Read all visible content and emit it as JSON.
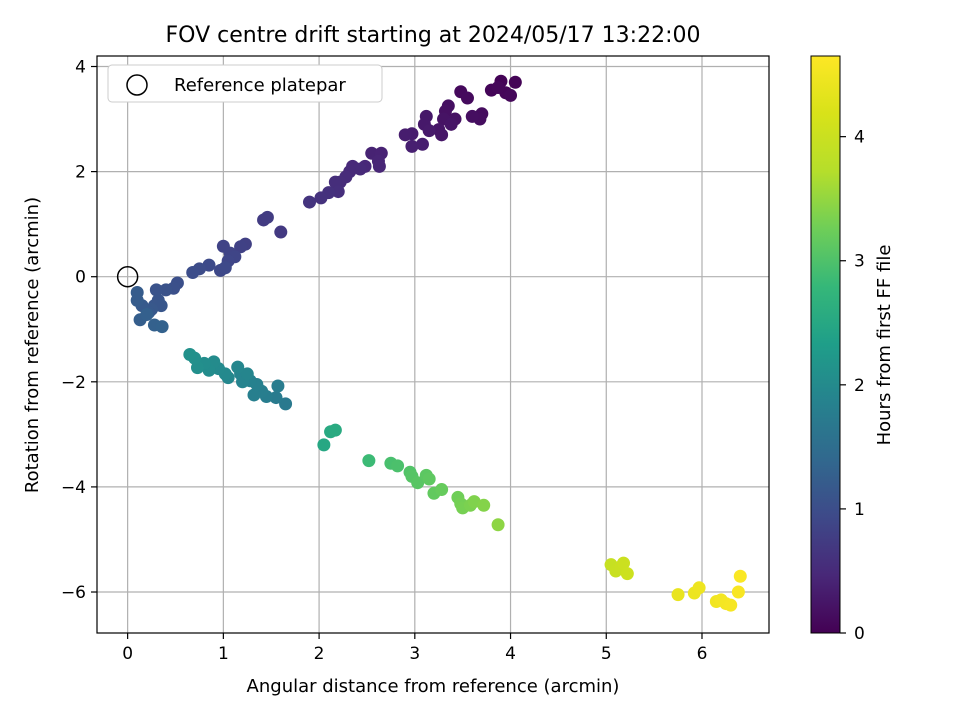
{
  "chart_data": {
    "type": "scatter",
    "title": "FOV centre drift starting at 2024/05/17 13:22:00",
    "xlabel": "Angular distance from reference (arcmin)",
    "ylabel": "Rotation from reference (arcmin)",
    "xlim": [
      -0.32,
      6.7
    ],
    "ylim": [
      -6.78,
      4.2
    ],
    "xticks": [
      0,
      1,
      2,
      3,
      4,
      5,
      6
    ],
    "yticks": [
      -6,
      -4,
      -2,
      0,
      2,
      4
    ],
    "grid": true,
    "legend": {
      "position": "top-left",
      "entries": [
        "Reference platepar"
      ]
    },
    "reference_point": {
      "x": 0,
      "y": 0,
      "label": "Reference platepar",
      "marker": "open-circle"
    },
    "colorbar": {
      "label": "Hours from first FF file",
      "range": [
        0,
        4.65
      ],
      "ticks": [
        0,
        1,
        2,
        3,
        4
      ],
      "colormap": "viridis"
    },
    "series": [
      {
        "values": [
          {
            "x": 3.9,
            "y": 3.72,
            "c": 0.02
          },
          {
            "x": 4.05,
            "y": 3.7,
            "c": 0.03
          },
          {
            "x": 3.8,
            "y": 3.55,
            "c": 0.05
          },
          {
            "x": 3.95,
            "y": 3.5,
            "c": 0.06
          },
          {
            "x": 3.87,
            "y": 3.6,
            "c": 0.07
          },
          {
            "x": 4.0,
            "y": 3.45,
            "c": 0.08
          },
          {
            "x": 3.48,
            "y": 3.52,
            "c": 0.1
          },
          {
            "x": 3.55,
            "y": 3.4,
            "c": 0.11
          },
          {
            "x": 3.7,
            "y": 3.1,
            "c": 0.13
          },
          {
            "x": 3.68,
            "y": 3.0,
            "c": 0.14
          },
          {
            "x": 3.6,
            "y": 3.05,
            "c": 0.15
          },
          {
            "x": 3.35,
            "y": 3.25,
            "c": 0.17
          },
          {
            "x": 3.32,
            "y": 3.15,
            "c": 0.18
          },
          {
            "x": 3.42,
            "y": 3.0,
            "c": 0.2
          },
          {
            "x": 3.3,
            "y": 3.0,
            "c": 0.21
          },
          {
            "x": 3.38,
            "y": 2.9,
            "c": 0.23
          },
          {
            "x": 3.25,
            "y": 2.8,
            "c": 0.24
          },
          {
            "x": 3.28,
            "y": 2.7,
            "c": 0.25
          },
          {
            "x": 3.12,
            "y": 3.05,
            "c": 0.27
          },
          {
            "x": 3.1,
            "y": 2.9,
            "c": 0.28
          },
          {
            "x": 3.15,
            "y": 2.78,
            "c": 0.3
          },
          {
            "x": 2.97,
            "y": 2.72,
            "c": 0.32
          },
          {
            "x": 2.9,
            "y": 2.7,
            "c": 0.33
          },
          {
            "x": 3.08,
            "y": 2.52,
            "c": 0.35
          },
          {
            "x": 2.97,
            "y": 2.48,
            "c": 0.36
          },
          {
            "x": 2.55,
            "y": 2.35,
            "c": 0.4
          },
          {
            "x": 2.65,
            "y": 2.35,
            "c": 0.41
          },
          {
            "x": 2.62,
            "y": 2.2,
            "c": 0.43
          },
          {
            "x": 2.63,
            "y": 2.1,
            "c": 0.44
          },
          {
            "x": 2.48,
            "y": 2.1,
            "c": 0.46
          },
          {
            "x": 2.35,
            "y": 2.1,
            "c": 0.48
          },
          {
            "x": 2.43,
            "y": 2.05,
            "c": 0.49
          },
          {
            "x": 2.32,
            "y": 2.0,
            "c": 0.5
          },
          {
            "x": 2.28,
            "y": 1.9,
            "c": 0.52
          },
          {
            "x": 2.22,
            "y": 1.8,
            "c": 0.53
          },
          {
            "x": 2.17,
            "y": 1.8,
            "c": 0.55
          },
          {
            "x": 2.2,
            "y": 1.62,
            "c": 0.57
          },
          {
            "x": 2.1,
            "y": 1.6,
            "c": 0.59
          },
          {
            "x": 2.02,
            "y": 1.5,
            "c": 0.61
          },
          {
            "x": 1.9,
            "y": 1.42,
            "c": 0.63
          },
          {
            "x": 1.6,
            "y": 0.85,
            "c": 0.7
          },
          {
            "x": 1.42,
            "y": 1.08,
            "c": 0.73
          },
          {
            "x": 1.46,
            "y": 1.13,
            "c": 0.75
          },
          {
            "x": 1.23,
            "y": 0.62,
            "c": 0.8
          },
          {
            "x": 1.18,
            "y": 0.57,
            "c": 0.82
          },
          {
            "x": 1.0,
            "y": 0.58,
            "c": 0.84
          },
          {
            "x": 1.07,
            "y": 0.45,
            "c": 0.86
          },
          {
            "x": 1.12,
            "y": 0.38,
            "c": 0.87
          },
          {
            "x": 1.05,
            "y": 0.3,
            "c": 0.89
          },
          {
            "x": 0.97,
            "y": 0.12,
            "c": 0.91
          },
          {
            "x": 1.02,
            "y": 0.17,
            "c": 0.93
          },
          {
            "x": 0.85,
            "y": 0.22,
            "c": 0.95
          },
          {
            "x": 0.75,
            "y": 0.15,
            "c": 0.97
          },
          {
            "x": 0.68,
            "y": 0.08,
            "c": 0.99
          },
          {
            "x": 0.52,
            "y": -0.12,
            "c": 1.02
          },
          {
            "x": 0.48,
            "y": -0.22,
            "c": 1.04
          },
          {
            "x": 0.4,
            "y": -0.25,
            "c": 1.06
          },
          {
            "x": 0.3,
            "y": -0.25,
            "c": 1.08
          },
          {
            "x": 0.32,
            "y": -0.45,
            "c": 1.1
          },
          {
            "x": 0.28,
            "y": -0.55,
            "c": 1.12
          },
          {
            "x": 0.35,
            "y": -0.55,
            "c": 1.13
          },
          {
            "x": 0.25,
            "y": -0.62,
            "c": 1.15
          },
          {
            "x": 0.22,
            "y": -0.68,
            "c": 1.17
          },
          {
            "x": 0.15,
            "y": -0.55,
            "c": 1.19
          },
          {
            "x": 0.1,
            "y": -0.45,
            "c": 1.21
          },
          {
            "x": 0.1,
            "y": -0.3,
            "c": 1.22
          },
          {
            "x": 0.13,
            "y": -0.82,
            "c": 1.25
          },
          {
            "x": 0.2,
            "y": -0.72,
            "c": 1.27
          },
          {
            "x": 0.28,
            "y": -0.92,
            "c": 1.29
          },
          {
            "x": 0.36,
            "y": -0.95,
            "c": 1.31
          },
          {
            "x": 1.65,
            "y": -2.42,
            "c": 1.7
          },
          {
            "x": 1.55,
            "y": -2.3,
            "c": 1.73
          },
          {
            "x": 1.57,
            "y": -2.08,
            "c": 1.75
          },
          {
            "x": 1.45,
            "y": -2.28,
            "c": 1.77
          },
          {
            "x": 1.4,
            "y": -2.18,
            "c": 1.79
          },
          {
            "x": 1.32,
            "y": -2.25,
            "c": 1.81
          },
          {
            "x": 1.35,
            "y": -2.05,
            "c": 1.83
          },
          {
            "x": 1.28,
            "y": -1.98,
            "c": 1.85
          },
          {
            "x": 1.2,
            "y": -2.0,
            "c": 1.87
          },
          {
            "x": 1.18,
            "y": -1.85,
            "c": 1.89
          },
          {
            "x": 1.25,
            "y": -1.85,
            "c": 1.91
          },
          {
            "x": 1.15,
            "y": -1.72,
            "c": 1.93
          },
          {
            "x": 1.05,
            "y": -1.92,
            "c": 1.95
          },
          {
            "x": 1.02,
            "y": -1.85,
            "c": 1.97
          },
          {
            "x": 0.95,
            "y": -1.75,
            "c": 1.99
          },
          {
            "x": 0.9,
            "y": -1.62,
            "c": 2.01
          },
          {
            "x": 0.85,
            "y": -1.78,
            "c": 2.03
          },
          {
            "x": 0.8,
            "y": -1.65,
            "c": 2.05
          },
          {
            "x": 0.73,
            "y": -1.73,
            "c": 2.07
          },
          {
            "x": 0.7,
            "y": -1.55,
            "c": 2.09
          },
          {
            "x": 0.65,
            "y": -1.48,
            "c": 2.11
          },
          {
            "x": 2.05,
            "y": -3.2,
            "c": 2.5
          },
          {
            "x": 2.12,
            "y": -2.95,
            "c": 2.53
          },
          {
            "x": 2.17,
            "y": -2.92,
            "c": 2.55
          },
          {
            "x": 2.52,
            "y": -3.5,
            "c": 2.85
          },
          {
            "x": 2.75,
            "y": -3.55,
            "c": 2.95
          },
          {
            "x": 2.82,
            "y": -3.6,
            "c": 2.98
          },
          {
            "x": 2.95,
            "y": -3.72,
            "c": 3.03
          },
          {
            "x": 2.97,
            "y": -3.8,
            "c": 3.06
          },
          {
            "x": 3.03,
            "y": -3.92,
            "c": 3.08
          },
          {
            "x": 3.12,
            "y": -3.78,
            "c": 3.11
          },
          {
            "x": 3.15,
            "y": -3.85,
            "c": 3.13
          },
          {
            "x": 3.2,
            "y": -4.12,
            "c": 3.16
          },
          {
            "x": 3.28,
            "y": -4.05,
            "c": 3.19
          },
          {
            "x": 3.45,
            "y": -4.2,
            "c": 3.26
          },
          {
            "x": 3.48,
            "y": -4.32,
            "c": 3.29
          },
          {
            "x": 3.5,
            "y": -4.4,
            "c": 3.31
          },
          {
            "x": 3.58,
            "y": -4.35,
            "c": 3.34
          },
          {
            "x": 3.62,
            "y": -4.28,
            "c": 3.37
          },
          {
            "x": 3.72,
            "y": -4.35,
            "c": 3.4
          },
          {
            "x": 3.87,
            "y": -4.72,
            "c": 3.46
          },
          {
            "x": 5.05,
            "y": -5.48,
            "c": 3.95
          },
          {
            "x": 5.1,
            "y": -5.6,
            "c": 3.97
          },
          {
            "x": 5.15,
            "y": -5.52,
            "c": 3.99
          },
          {
            "x": 5.18,
            "y": -5.45,
            "c": 4.01
          },
          {
            "x": 5.22,
            "y": -5.65,
            "c": 4.03
          },
          {
            "x": 5.75,
            "y": -6.05,
            "c": 4.4
          },
          {
            "x": 5.92,
            "y": -6.02,
            "c": 4.44
          },
          {
            "x": 5.97,
            "y": -5.92,
            "c": 4.46
          },
          {
            "x": 6.15,
            "y": -6.18,
            "c": 4.5
          },
          {
            "x": 6.2,
            "y": -6.15,
            "c": 4.52
          },
          {
            "x": 6.25,
            "y": -6.22,
            "c": 4.54
          },
          {
            "x": 6.3,
            "y": -6.25,
            "c": 4.56
          },
          {
            "x": 6.38,
            "y": -6.0,
            "c": 4.59
          },
          {
            "x": 6.4,
            "y": -5.7,
            "c": 4.61
          }
        ]
      }
    ]
  }
}
